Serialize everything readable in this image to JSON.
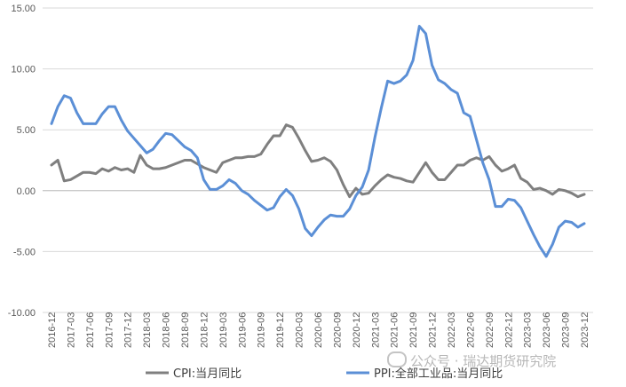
{
  "chart_data": {
    "type": "line",
    "ylim": [
      -10,
      15
    ],
    "ytick_labels": [
      "15.00",
      "10.00",
      "5.00",
      "0.00",
      "-5.00",
      "-10.00"
    ],
    "ytick_values": [
      15,
      10,
      5,
      0,
      -5,
      -10
    ],
    "x": [
      "2016-12",
      "2017-01",
      "2017-02",
      "2017-03",
      "2017-04",
      "2017-05",
      "2017-06",
      "2017-07",
      "2017-08",
      "2017-09",
      "2017-10",
      "2017-11",
      "2017-12",
      "2018-01",
      "2018-02",
      "2018-03",
      "2018-04",
      "2018-05",
      "2018-06",
      "2018-07",
      "2018-08",
      "2018-09",
      "2018-10",
      "2018-11",
      "2018-12",
      "2019-01",
      "2019-02",
      "2019-03",
      "2019-04",
      "2019-05",
      "2019-06",
      "2019-07",
      "2019-08",
      "2019-09",
      "2019-10",
      "2019-11",
      "2019-12",
      "2020-01",
      "2020-02",
      "2020-03",
      "2020-04",
      "2020-05",
      "2020-06",
      "2020-07",
      "2020-08",
      "2020-09",
      "2020-10",
      "2020-11",
      "2020-12",
      "2021-01",
      "2021-02",
      "2021-03",
      "2021-04",
      "2021-05",
      "2021-06",
      "2021-07",
      "2021-08",
      "2021-09",
      "2021-10",
      "2021-11",
      "2021-12",
      "2022-01",
      "2022-02",
      "2022-03",
      "2022-04",
      "2022-05",
      "2022-06",
      "2022-07",
      "2022-08",
      "2022-09",
      "2022-10",
      "2022-11",
      "2022-12",
      "2023-01",
      "2023-02",
      "2023-03",
      "2023-04",
      "2023-05",
      "2023-06",
      "2023-07",
      "2023-08",
      "2023-09",
      "2023-10",
      "2023-11",
      "2023-12"
    ],
    "xtick_labels": [
      "2016-12",
      "2017-03",
      "2017-06",
      "2017-09",
      "2017-12",
      "2018-03",
      "2018-06",
      "2018-09",
      "2018-12",
      "2019-03",
      "2019-06",
      "2019-09",
      "2019-12",
      "2020-03",
      "2020-06",
      "2020-09",
      "2020-12",
      "2021-03",
      "2021-06",
      "2021-09",
      "2021-12",
      "2022-03",
      "2022-06",
      "2022-09",
      "2022-12",
      "2023-03",
      "2023-06",
      "2023-09",
      "2023-12"
    ],
    "series": [
      {
        "name": "CPI:当月同比",
        "color": "#7f7f7f",
        "values": [
          2.1,
          2.5,
          0.8,
          0.9,
          1.2,
          1.5,
          1.5,
          1.4,
          1.8,
          1.6,
          1.9,
          1.7,
          1.8,
          1.5,
          2.9,
          2.1,
          1.8,
          1.8,
          1.9,
          2.1,
          2.3,
          2.5,
          2.5,
          2.2,
          1.9,
          1.7,
          1.5,
          2.3,
          2.5,
          2.7,
          2.7,
          2.8,
          2.8,
          3.0,
          3.8,
          4.5,
          4.5,
          5.4,
          5.2,
          4.3,
          3.3,
          2.4,
          2.5,
          2.7,
          2.4,
          1.7,
          0.5,
          -0.5,
          0.2,
          -0.3,
          -0.2,
          0.4,
          0.9,
          1.3,
          1.1,
          1.0,
          0.8,
          0.7,
          1.5,
          2.3,
          1.5,
          0.9,
          0.9,
          1.5,
          2.1,
          2.1,
          2.5,
          2.7,
          2.5,
          2.8,
          2.1,
          1.6,
          1.8,
          2.1,
          1.0,
          0.7,
          0.1,
          0.2,
          0.0,
          -0.3,
          0.1,
          0.0,
          -0.2,
          -0.5,
          -0.3
        ]
      },
      {
        "name": "PPI:全部工业品:当月同比",
        "color": "#5b8fd6",
        "values": [
          5.5,
          6.9,
          7.8,
          7.6,
          6.4,
          5.5,
          5.5,
          5.5,
          6.3,
          6.9,
          6.9,
          5.8,
          4.9,
          4.3,
          3.7,
          3.1,
          3.4,
          4.1,
          4.7,
          4.6,
          4.1,
          3.6,
          3.3,
          2.7,
          0.9,
          0.1,
          0.1,
          0.4,
          0.9,
          0.6,
          0.0,
          -0.3,
          -0.8,
          -1.2,
          -1.6,
          -1.4,
          -0.5,
          0.1,
          -0.4,
          -1.5,
          -3.1,
          -3.7,
          -3.0,
          -2.4,
          -2.0,
          -2.1,
          -2.1,
          -1.5,
          -0.4,
          0.3,
          1.7,
          4.4,
          6.8,
          9.0,
          8.8,
          9.0,
          9.5,
          10.7,
          13.5,
          12.9,
          10.3,
          9.1,
          8.8,
          8.3,
          8.0,
          6.4,
          6.1,
          4.2,
          2.3,
          0.9,
          -1.3,
          -1.3,
          -0.7,
          -0.8,
          -1.4,
          -2.5,
          -3.6,
          -4.6,
          -5.4,
          -4.4,
          -3.0,
          -2.5,
          -2.6,
          -3.0,
          -2.7
        ]
      }
    ]
  },
  "legend": {
    "cpi_label": "CPI:当月同比",
    "ppi_label": "PPI:全部工业品:当月同比"
  },
  "watermark": "公众号 · 瑞达期货研究院",
  "colors": {
    "grid": "#d9d9d9",
    "axis": "#bfbfbf",
    "text": "#595959"
  }
}
